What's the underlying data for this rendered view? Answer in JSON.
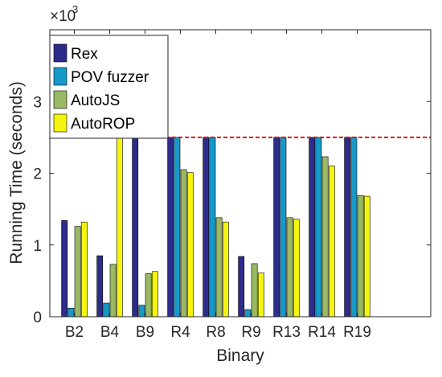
{
  "chart_data": {
    "type": "bar",
    "xlabel": "Binary",
    "ylabel": "Running Time (seconds)",
    "axis_multiplier": {
      "base": "×10",
      "exponent": "3"
    },
    "ylim": [
      0,
      4
    ],
    "yticks": [
      "0",
      "1",
      "2",
      "3"
    ],
    "grid": false,
    "legend_position": "top-left",
    "categories": [
      "B2",
      "B4",
      "B9",
      "R4",
      "R8",
      "R9",
      "R13",
      "R14",
      "R19"
    ],
    "series": [
      {
        "name": "Rex",
        "color": "#2e2c8a",
        "values": [
          1.34,
          0.85,
          2.5,
          2.5,
          2.5,
          0.84,
          2.5,
          2.5,
          2.5
        ]
      },
      {
        "name": "POV fuzzer",
        "color": "#1799c9",
        "values": [
          0.12,
          0.19,
          0.16,
          2.5,
          2.5,
          0.1,
          2.5,
          2.5,
          2.5
        ]
      },
      {
        "name": "AutoJS",
        "color": "#99b964",
        "values": [
          1.26,
          0.73,
          0.6,
          2.05,
          1.38,
          0.74,
          1.38,
          2.23,
          1.69
        ]
      },
      {
        "name": "AutoROP",
        "color": "#f4f40f",
        "values": [
          1.32,
          2.5,
          0.63,
          2.01,
          1.32,
          0.61,
          1.36,
          2.1,
          1.68
        ]
      }
    ],
    "threshold": {
      "value": 2.5,
      "color": "#e0181b",
      "style": "dashed"
    }
  }
}
